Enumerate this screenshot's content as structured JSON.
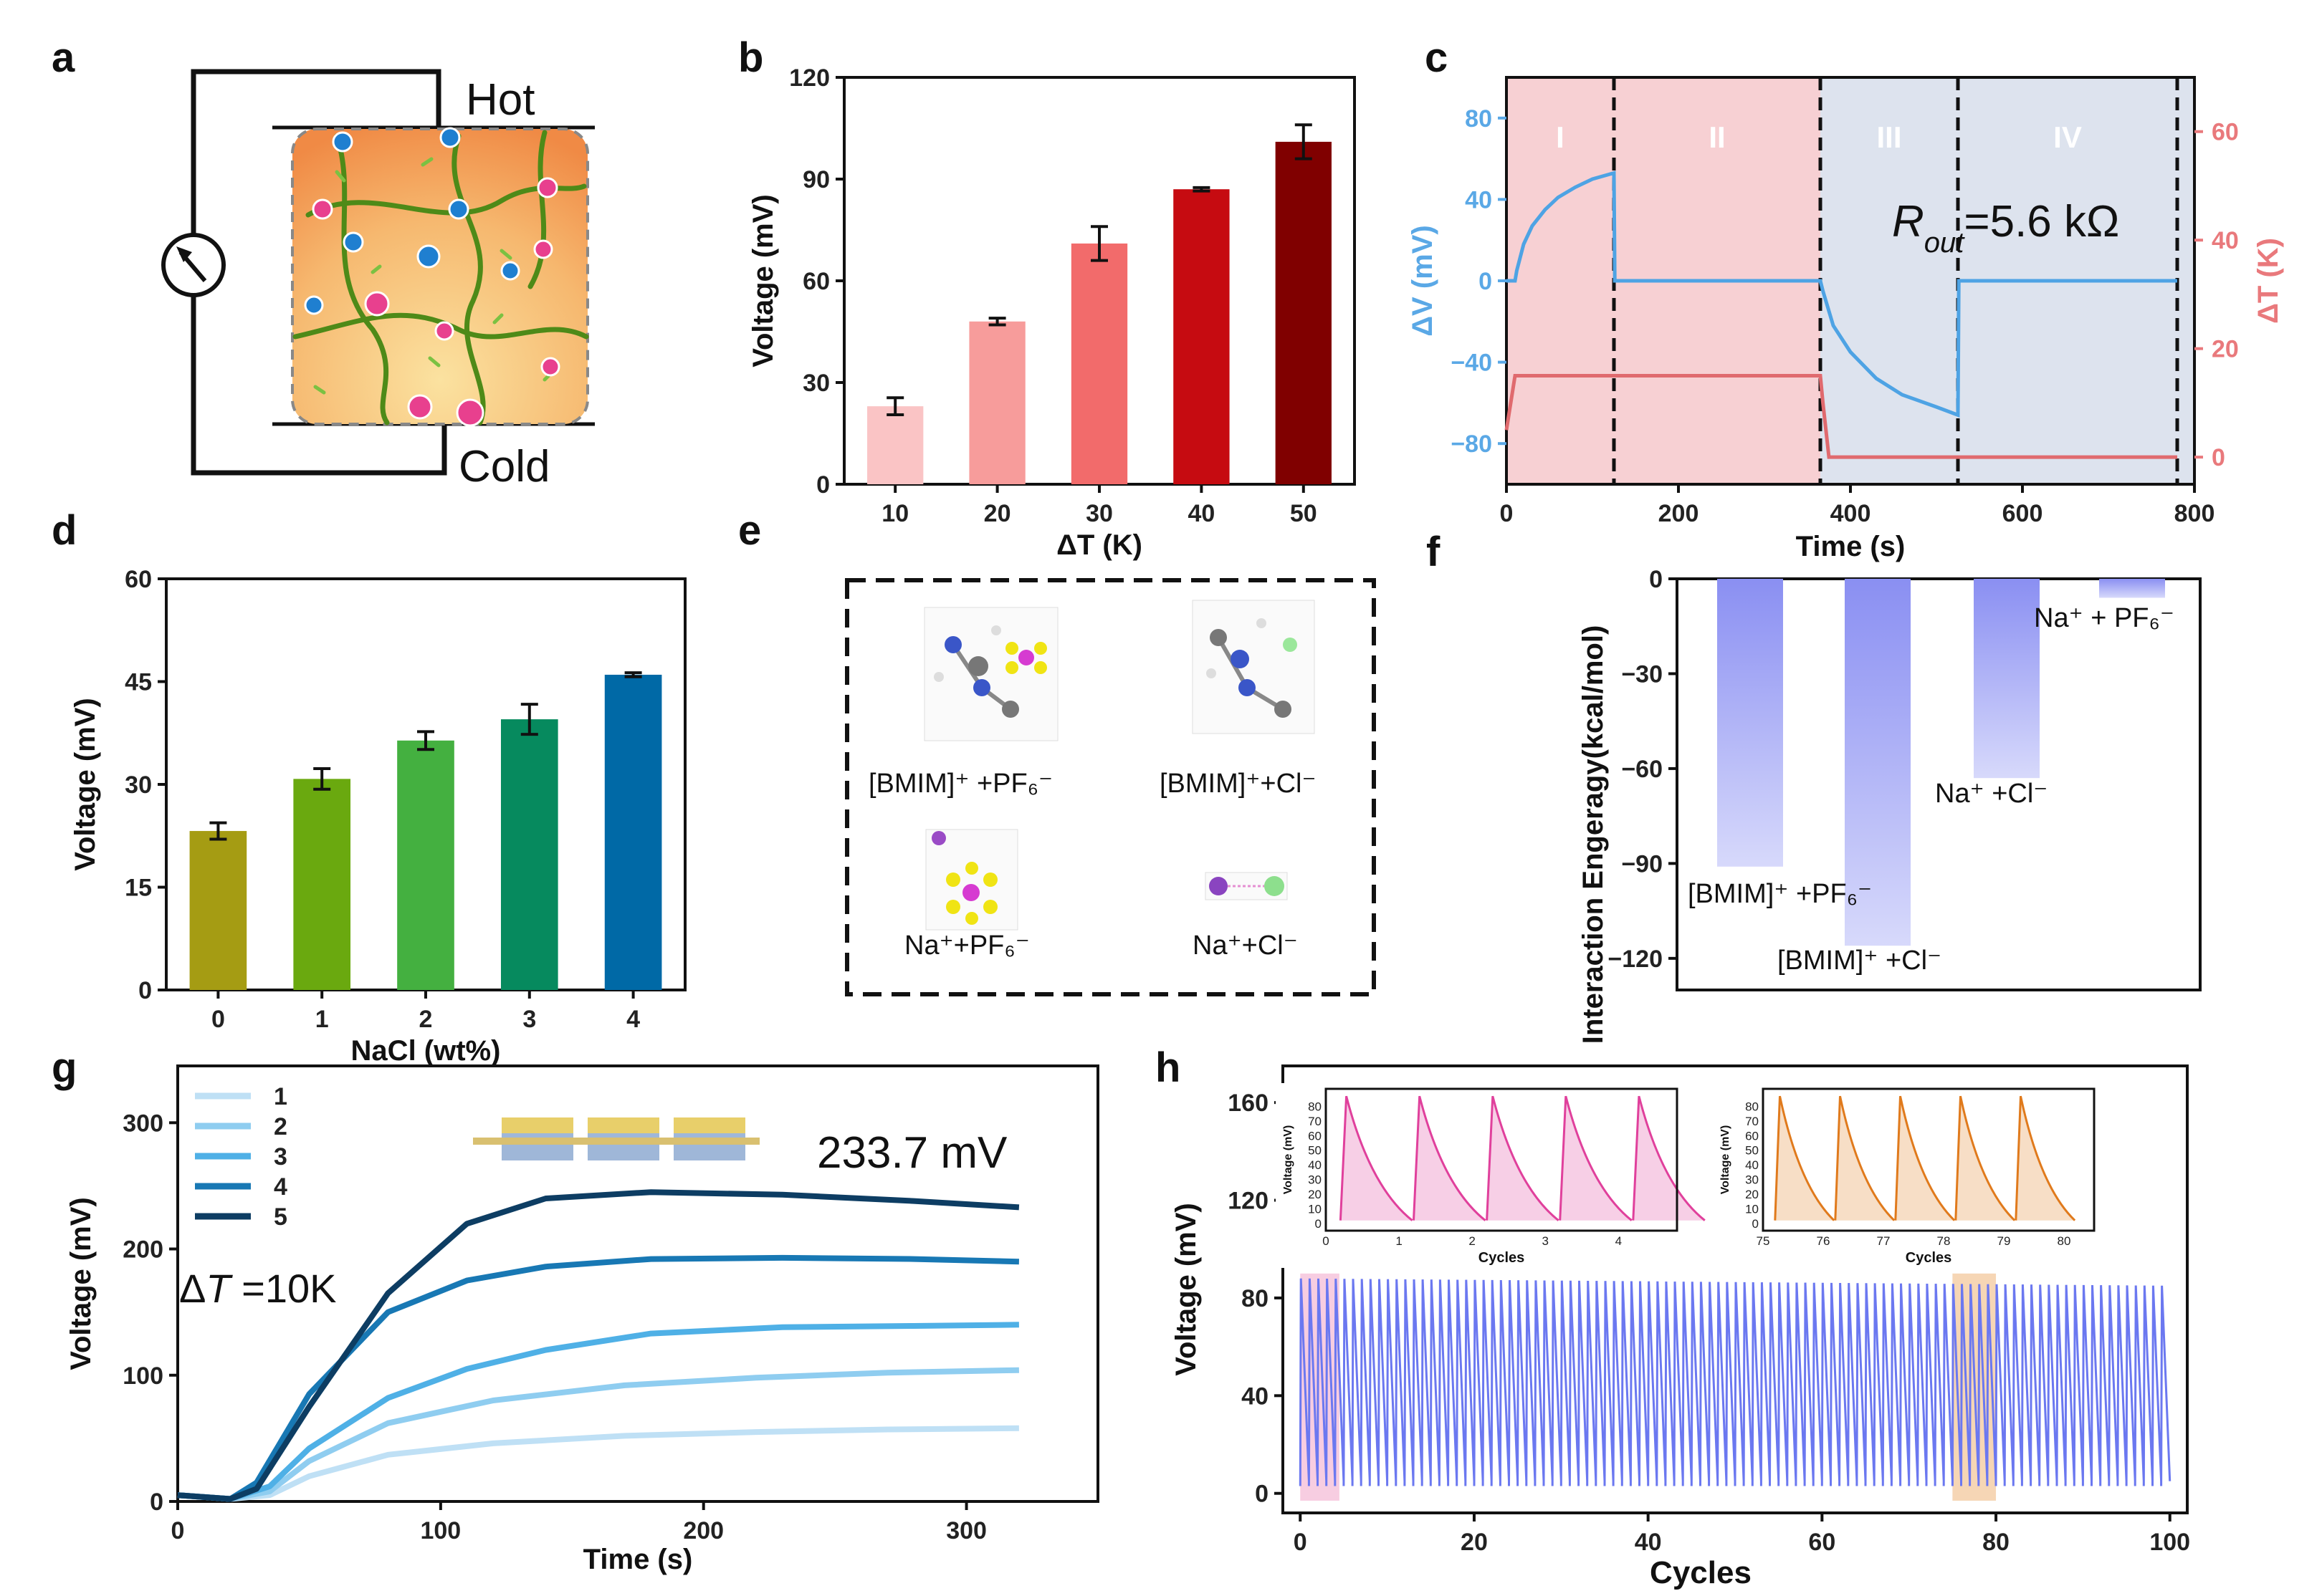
{
  "panel_labels": [
    "a",
    "b",
    "c",
    "d",
    "e",
    "f",
    "g",
    "h"
  ],
  "colors": {
    "blue_axis": "#5aa8e6",
    "red_axis": "#e9797c",
    "region_pink": "#f7d0d3",
    "region_blue": "#dde3ee",
    "b_bars": [
      "#fac4c5",
      "#f79c9b",
      "#f26b6b",
      "#c60b11",
      "#800000"
    ],
    "d_bars": [
      "#a59c13",
      "#6aa90f",
      "#44b040",
      "#068a5e",
      "#0069a6"
    ],
    "g_series": [
      "#bfe0f5",
      "#8fcdf0",
      "#4fb0e6",
      "#1878b4",
      "#0d3d63"
    ],
    "h_line": "#6b78f0",
    "h_inset1": "#e0409c",
    "h_inset2": "#e07a1c",
    "f_bar": "#8a8ff2"
  },
  "panel_a": {
    "hot_label": "Hot",
    "cold_label": "Cold",
    "icons": [
      "ammeter-icon",
      "hydrogel-icon"
    ]
  },
  "panel_e": {
    "labels": [
      "[BMIM]⁺ +PF₆⁻",
      "[BMIM]⁺+Cl⁻",
      "Na⁺+PF₆⁻",
      "Na⁺+Cl⁻"
    ],
    "icons": [
      "molecule-bmim-pf6-icon",
      "molecule-bmim-cl-icon",
      "molecule-na-pf6-icon",
      "molecule-na-cl-icon"
    ]
  },
  "chart_data": [
    {
      "id": "b",
      "type": "bar",
      "categories": [
        "10",
        "20",
        "30",
        "40",
        "50"
      ],
      "values": [
        23,
        48,
        71,
        87,
        101
      ],
      "errors": [
        2.5,
        1,
        5,
        0.5,
        5
      ],
      "xlabel": "ΔT (K)",
      "ylabel": "Voltage (mV)",
      "ylim": [
        0,
        120
      ],
      "yticks": [
        "0",
        "30",
        "60",
        "90",
        "120"
      ]
    },
    {
      "id": "c",
      "type": "line",
      "xlabel": "Time (s)",
      "ylabel_left": "ΔV (mV)",
      "ylabel_right": "ΔT (K)",
      "xlim": [
        0,
        800
      ],
      "ylim_left": [
        -100,
        100
      ],
      "ylim_right": [
        -5,
        70
      ],
      "xticks": [
        "0",
        "200",
        "400",
        "600",
        "800"
      ],
      "yticks_left": [
        "−80",
        "−40",
        "0",
        "40",
        "80"
      ],
      "yticks_right": [
        "0",
        "20",
        "40",
        "60"
      ],
      "regions": [
        {
          "label": "I",
          "x0": 0,
          "x1": 125
        },
        {
          "label": "II",
          "x0": 125,
          "x1": 365
        },
        {
          "label": "III",
          "x0": 365,
          "x1": 525
        },
        {
          "label": "IV",
          "x0": 525,
          "x1": 780
        }
      ],
      "annotation": "R_out=5.6 kΩ",
      "annotation_main": "R",
      "annotation_sub": "out",
      "annotation_rest": "=5.6 kΩ",
      "series": [
        {
          "name": "ΔV",
          "axis": "left",
          "x": [
            0,
            10,
            12,
            20,
            30,
            45,
            60,
            80,
            100,
            125,
            126,
            130,
            365,
            368,
            380,
            400,
            430,
            460,
            500,
            525,
            526,
            780
          ],
          "y": [
            0,
            0,
            5,
            18,
            27,
            35,
            41,
            46,
            50,
            53,
            0,
            0,
            0,
            -5,
            -22,
            -35,
            -48,
            -56,
            -62,
            -66,
            0,
            0
          ]
        },
        {
          "name": "ΔT",
          "axis": "right",
          "x": [
            0,
            8,
            10,
            365,
            368,
            375,
            780
          ],
          "y": [
            5,
            13,
            15,
            15,
            10,
            0,
            0
          ]
        }
      ]
    },
    {
      "id": "d",
      "type": "bar",
      "categories": [
        "0",
        "1",
        "2",
        "3",
        "4"
      ],
      "values": [
        23.2,
        30.8,
        36.4,
        39.5,
        46.0
      ],
      "errors": [
        1.2,
        1.5,
        1.3,
        2.2,
        0.3
      ],
      "xlabel": "NaCl (wt%)",
      "ylabel": "Voltage (mV)",
      "ylim": [
        0,
        60
      ],
      "yticks": [
        "0",
        "15",
        "30",
        "45",
        "60"
      ]
    },
    {
      "id": "f",
      "type": "bar",
      "categories": [
        "[BMIM]⁺ +PF₆⁻",
        "[BMIM]⁺ +Cl⁻",
        "Na⁺ +Cl⁻",
        "Na⁺ + PF₆⁻"
      ],
      "values": [
        -91,
        -116,
        -63,
        -6
      ],
      "ylabel": "Interaction Engeragy(kcal/mol)",
      "ylim": [
        -130,
        0
      ],
      "yticks": [
        "0",
        "−30",
        "−60",
        "−90",
        "−120"
      ]
    },
    {
      "id": "g",
      "type": "line",
      "xlabel": "Time (s)",
      "ylabel": "Voltage (mV)",
      "xlim": [
        0,
        350
      ],
      "ylim": [
        0,
        345
      ],
      "xticks": [
        "0",
        "100",
        "200",
        "300"
      ],
      "yticks": [
        "0",
        "100",
        "200",
        "300"
      ],
      "annotation_value": "233.7 mV",
      "annotation_dt_symbol": "Δ",
      "annotation_dt_var": "T",
      "annotation_dt_rest": " =10K",
      "legend": [
        "1",
        "2",
        "3",
        "4",
        "5"
      ],
      "series": [
        {
          "name": "1",
          "x": [
            0,
            20,
            35,
            50,
            80,
            120,
            170,
            220,
            270,
            320
          ],
          "y": [
            5,
            2,
            5,
            20,
            37,
            46,
            52,
            55,
            57,
            58
          ]
        },
        {
          "name": "2",
          "x": [
            0,
            20,
            35,
            50,
            80,
            120,
            170,
            220,
            270,
            320
          ],
          "y": [
            5,
            2,
            8,
            32,
            62,
            80,
            92,
            98,
            102,
            104
          ]
        },
        {
          "name": "3",
          "x": [
            0,
            20,
            35,
            50,
            80,
            110,
            140,
            180,
            230,
            280,
            320
          ],
          "y": [
            5,
            2,
            12,
            42,
            82,
            105,
            120,
            133,
            138,
            139,
            140
          ]
        },
        {
          "name": "4",
          "x": [
            0,
            20,
            30,
            50,
            80,
            110,
            140,
            180,
            230,
            280,
            320
          ],
          "y": [
            5,
            2,
            15,
            85,
            150,
            175,
            186,
            192,
            193,
            192,
            190
          ]
        },
        {
          "name": "5",
          "x": [
            0,
            20,
            30,
            50,
            80,
            110,
            140,
            180,
            230,
            280,
            320
          ],
          "y": [
            5,
            2,
            10,
            75,
            165,
            220,
            240,
            245,
            243,
            238,
            233
          ]
        }
      ]
    },
    {
      "id": "h",
      "type": "line",
      "xlabel": "Cycles",
      "ylabel": "Voltage (mV)",
      "xlim": [
        -2,
        102
      ],
      "ylim": [
        -8,
        175
      ],
      "xticks": [
        "0",
        "20",
        "40",
        "60",
        "80",
        "100"
      ],
      "yticks": [
        "0",
        "40",
        "80",
        "120",
        "160"
      ],
      "cycles": 100,
      "peak_start": 88,
      "peak_end": 85,
      "valley": 3,
      "highlights": [
        {
          "x0": 0,
          "x1": 4.5
        },
        {
          "x0": 75,
          "x1": 80
        }
      ],
      "insets": [
        {
          "xlim": [
            0,
            4.8
          ],
          "ylim": [
            -5,
            92
          ],
          "xticks": [
            "0",
            "1",
            "2",
            "3",
            "4"
          ],
          "yticks": [
            "0",
            "10",
            "20",
            "30",
            "40",
            "50",
            "60",
            "70",
            "80"
          ],
          "xlabel": "Cycles",
          "ylabel": "Voltage (mV)",
          "start": 0
        },
        {
          "xlim": [
            75,
            80.5
          ],
          "ylim": [
            -5,
            92
          ],
          "xticks": [
            "75",
            "76",
            "77",
            "78",
            "79",
            "80"
          ],
          "yticks": [
            "0",
            "10",
            "20",
            "30",
            "40",
            "50",
            "60",
            "70",
            "80"
          ],
          "xlabel": "Cycles",
          "ylabel": "Voltage (mV)",
          "start": 75
        }
      ]
    }
  ]
}
